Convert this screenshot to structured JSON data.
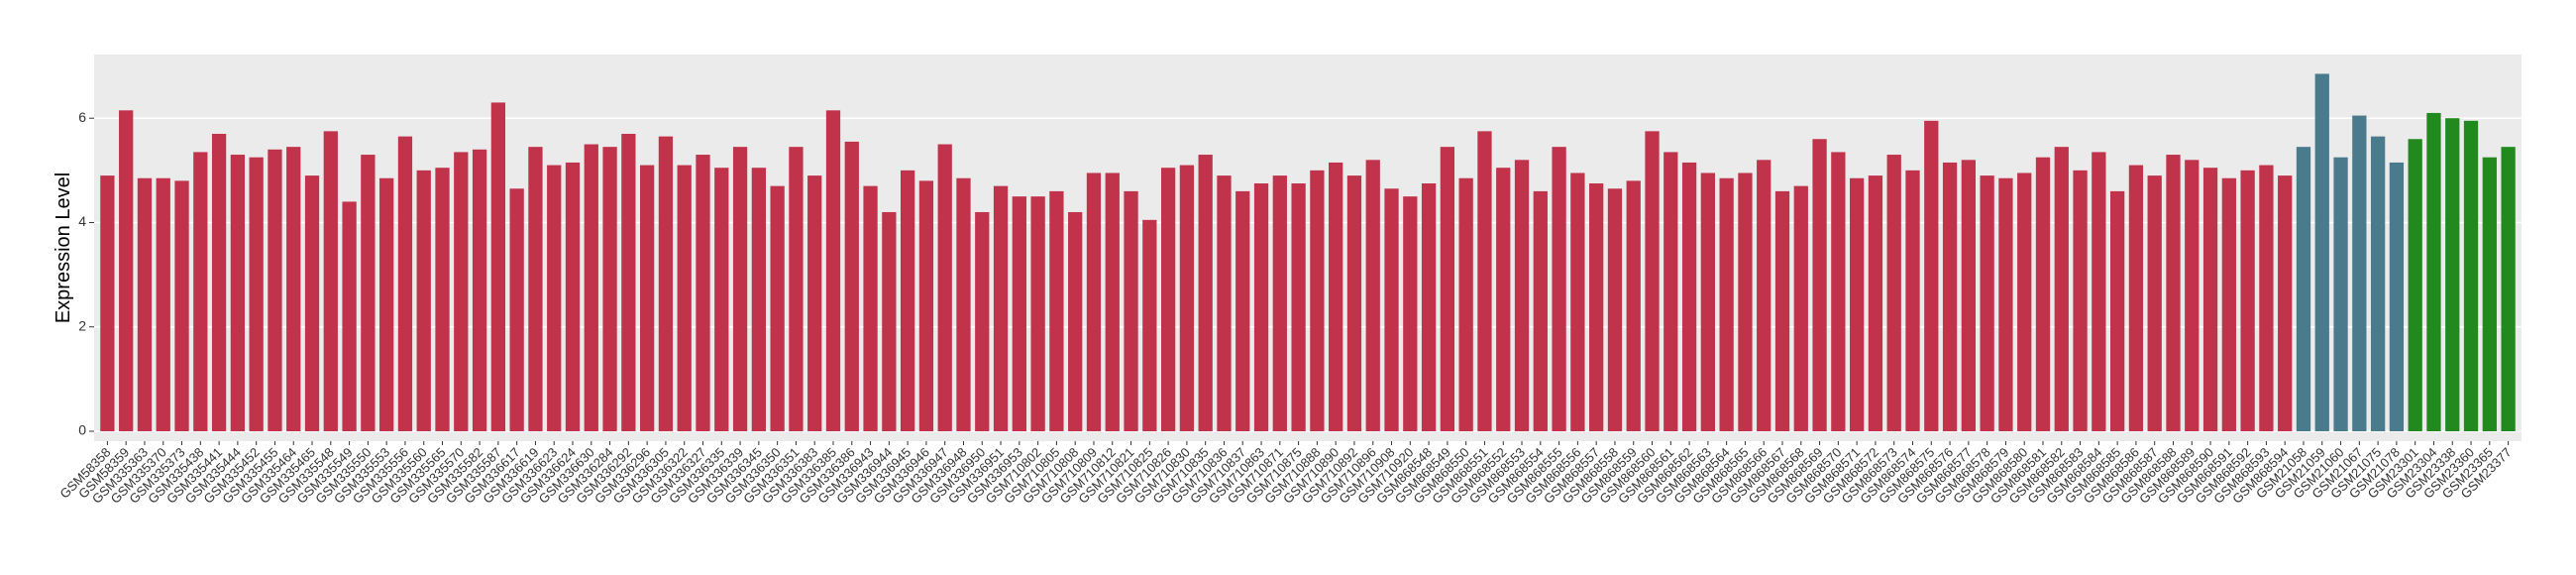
{
  "chart_data": {
    "type": "bar",
    "y_label": "Expression Level",
    "ylim": [
      -0.19,
      7.22
    ],
    "yticks": [
      0,
      2,
      4,
      6
    ],
    "grid": true,
    "series": [
      {
        "color": "#c0334b",
        "categories": [
          "GSM58358",
          "GSM58359",
          "GSM335363",
          "GSM335370",
          "GSM335373",
          "GSM335438",
          "GSM335441",
          "GSM335444",
          "GSM335452",
          "GSM335455",
          "GSM335464",
          "GSM335465",
          "GSM335548",
          "GSM335549",
          "GSM335550",
          "GSM335553",
          "GSM335556",
          "GSM335560",
          "GSM335565",
          "GSM335570",
          "GSM335582",
          "GSM335587",
          "GSM336617",
          "GSM336619",
          "GSM336623",
          "GSM336624",
          "GSM336630",
          "GSM336284",
          "GSM336292",
          "GSM336296",
          "GSM336305",
          "GSM336322",
          "GSM336327",
          "GSM336335",
          "GSM336339",
          "GSM336345",
          "GSM336350",
          "GSM336351",
          "GSM336383",
          "GSM336385",
          "GSM336386",
          "GSM336943",
          "GSM336944",
          "GSM336945",
          "GSM336946",
          "GSM336947",
          "GSM336948",
          "GSM336950",
          "GSM336951",
          "GSM336953",
          "GSM710802",
          "GSM710805",
          "GSM710808",
          "GSM710809",
          "GSM710812",
          "GSM710821",
          "GSM710825",
          "GSM710826",
          "GSM710830",
          "GSM710835",
          "GSM710836",
          "GSM710837",
          "GSM710863",
          "GSM710871",
          "GSM710875",
          "GSM710888",
          "GSM710890",
          "GSM710892",
          "GSM710896",
          "GSM710908",
          "GSM710920",
          "GSM868548",
          "GSM868549",
          "GSM868550",
          "GSM868551",
          "GSM868552",
          "GSM868553",
          "GSM868554",
          "GSM868555",
          "GSM868556",
          "GSM868557",
          "GSM868558",
          "GSM868559",
          "GSM868560",
          "GSM868561",
          "GSM868562",
          "GSM868563",
          "GSM868564",
          "GSM868565",
          "GSM868566",
          "GSM868567",
          "GSM868568",
          "GSM868569",
          "GSM868570",
          "GSM868571",
          "GSM868572",
          "GSM868573",
          "GSM868574",
          "GSM868575",
          "GSM868576",
          "GSM868577",
          "GSM868578",
          "GSM868579",
          "GSM868580",
          "GSM868581",
          "GSM868582",
          "GSM868583",
          "GSM868584",
          "GSM868585",
          "GSM868586",
          "GSM868587",
          "GSM868588",
          "GSM868589",
          "GSM868590",
          "GSM868591",
          "GSM868592",
          "GSM868593",
          "GSM868594"
        ],
        "values": [
          4.9,
          6.15,
          4.85,
          4.85,
          4.8,
          5.35,
          5.7,
          5.3,
          5.25,
          5.4,
          5.45,
          4.9,
          5.75,
          4.4,
          5.3,
          4.85,
          5.65,
          5.0,
          5.05,
          5.35,
          5.4,
          6.3,
          4.65,
          5.45,
          5.1,
          5.15,
          5.5,
          5.45,
          5.7,
          5.1,
          5.65,
          5.1,
          5.3,
          5.05,
          5.45,
          5.05,
          4.7,
          5.45,
          4.9,
          6.15,
          5.55,
          4.7,
          4.2,
          5.0,
          4.8,
          5.5,
          4.85,
          4.2,
          4.7,
          4.5,
          4.5,
          4.6,
          4.2,
          4.95,
          4.95,
          4.6,
          4.05,
          5.05,
          5.1,
          5.3,
          4.9,
          4.6,
          4.75,
          4.9,
          4.75,
          5.0,
          5.15,
          4.9,
          5.2,
          4.65,
          4.5,
          4.75,
          5.45,
          4.85,
          5.75,
          5.05,
          5.2,
          4.6,
          5.45,
          4.95,
          4.75,
          4.65,
          4.8,
          5.75,
          5.35,
          5.15,
          4.95,
          4.85,
          4.95,
          5.2,
          4.6,
          4.7,
          5.6,
          5.35,
          4.85,
          4.9,
          5.3,
          5.0,
          5.95,
          5.15,
          5.2,
          4.9,
          4.85,
          4.95,
          5.25,
          5.45,
          5.0,
          5.35,
          4.6,
          5.1,
          4.9,
          5.3,
          5.2,
          5.05,
          4.85,
          5.0,
          5.1,
          4.9
        ]
      },
      {
        "color": "#4a7b8d",
        "categories": [
          "GSM21058",
          "GSM21059",
          "GSM21060",
          "GSM21067",
          "GSM21075",
          "GSM21078"
        ],
        "values": [
          5.45,
          6.85,
          5.25,
          6.05,
          5.65,
          5.15
        ]
      },
      {
        "color": "#22891f",
        "categories": [
          "GSM23301",
          "GSM23304",
          "GSM23338",
          "GSM23360",
          "GSM23365",
          "GSM23377"
        ],
        "values": [
          5.6,
          6.1,
          6.0,
          5.95,
          5.25,
          5.45
        ]
      }
    ]
  }
}
